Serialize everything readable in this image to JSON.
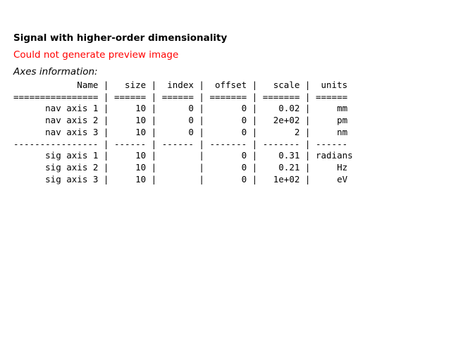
{
  "signal": {
    "title": "Signal with higher-order dimensionality",
    "preview_error": "Could not generate preview image",
    "error_color": "#ff0000"
  },
  "axes": {
    "heading": "Axes information:",
    "columns": [
      "Name",
      "size",
      "index",
      "offset",
      "scale",
      "units"
    ],
    "nav_axes": [
      {
        "name": "nav axis 1",
        "size": "10",
        "index": "0",
        "offset": "0",
        "scale": "0.02",
        "units": "mm"
      },
      {
        "name": "nav axis 2",
        "size": "10",
        "index": "0",
        "offset": "0",
        "scale": "2e+02",
        "units": "pm"
      },
      {
        "name": "nav axis 3",
        "size": "10",
        "index": "0",
        "offset": "0",
        "scale": "2",
        "units": "nm"
      }
    ],
    "sig_axes": [
      {
        "name": "sig axis 1",
        "size": "10",
        "index": "",
        "offset": "0",
        "scale": "0.31",
        "units": "radians"
      },
      {
        "name": "sig axis 2",
        "size": "10",
        "index": "",
        "offset": "0",
        "scale": "0.21",
        "units": "Hz"
      },
      {
        "name": "sig axis 3",
        "size": "10",
        "index": "",
        "offset": "0",
        "scale": "1e+02",
        "units": "eV"
      }
    ]
  }
}
